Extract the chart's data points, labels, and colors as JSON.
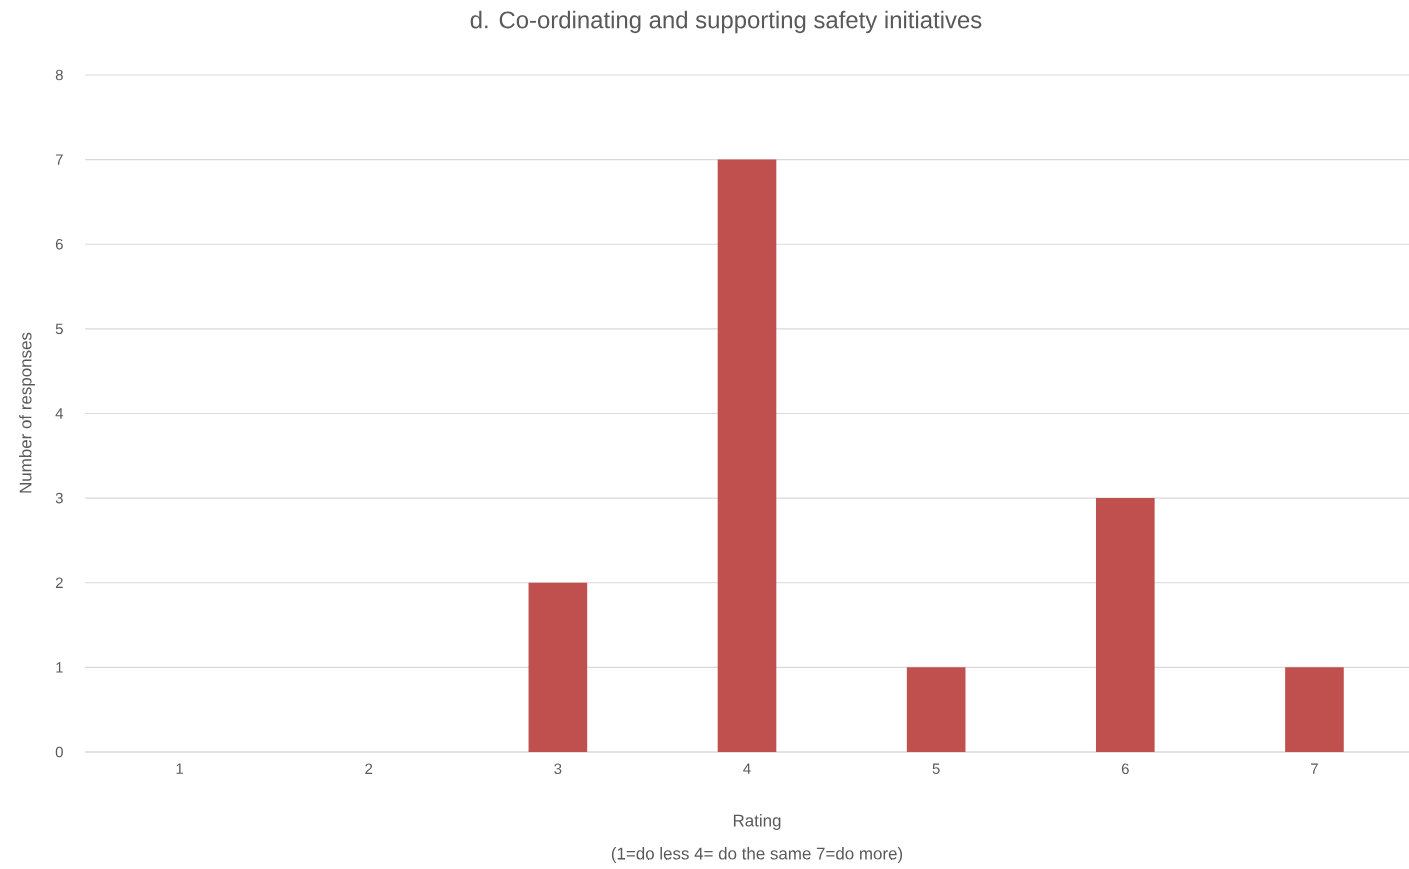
{
  "chart_data": {
    "type": "bar",
    "title": "d. Co-ordinating and supporting safety initiatives",
    "xlabel": "Rating",
    "ylabel": "Number of responses",
    "annotations": [
      "(1=do less 4= do the same 7=do more)"
    ],
    "categories": [
      "1",
      "2",
      "3",
      "4",
      "5",
      "6",
      "7"
    ],
    "values": [
      0,
      0,
      2,
      7,
      1,
      3,
      1
    ],
    "color": "#c0504d",
    "ylim": [
      0,
      8
    ],
    "yticks": [
      0,
      1,
      2,
      3,
      4,
      5,
      6,
      7,
      8
    ],
    "grid": "y"
  }
}
